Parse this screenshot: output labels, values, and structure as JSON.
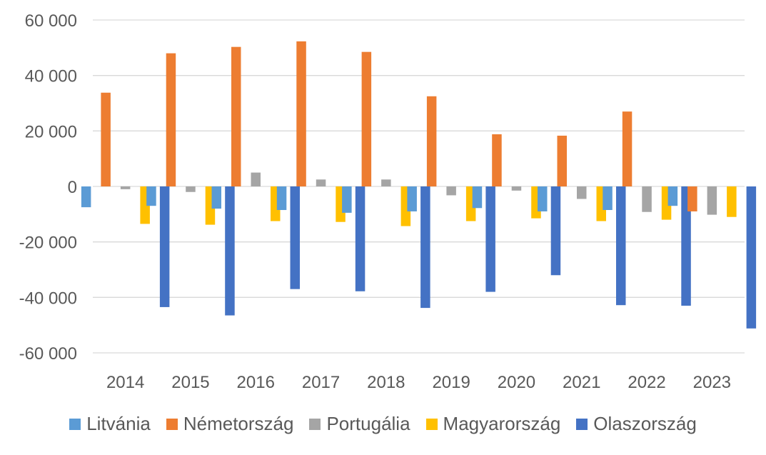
{
  "chart_data": {
    "type": "bar",
    "categories": [
      "2014",
      "2015",
      "2016",
      "2017",
      "2018",
      "2019",
      "2020",
      "2021",
      "2022",
      "2023"
    ],
    "series": [
      {
        "name": "Litvánia",
        "color": "#5b9bd5",
        "values": [
          -7500,
          -7000,
          -8000,
          -8500,
          -9500,
          -9000,
          -7800,
          -9000,
          -8500,
          -7000
        ]
      },
      {
        "name": "Németország",
        "color": "#ed7d31",
        "values": [
          33800,
          48000,
          50300,
          52300,
          48500,
          32500,
          18800,
          18300,
          27000,
          -9000
        ]
      },
      {
        "name": "Portugália",
        "color": "#a5a5a5",
        "values": [
          -1000,
          -2000,
          5000,
          2500,
          2500,
          -3200,
          -1500,
          -4500,
          -9200,
          -10200
        ]
      },
      {
        "name": "Magyarország",
        "color": "#ffc000",
        "values": [
          -13500,
          -13800,
          -12500,
          -12800,
          -14300,
          -12500,
          -11500,
          -12500,
          -12000,
          -11000
        ]
      },
      {
        "name": "Olaszország",
        "color": "#4472c4",
        "values": [
          -43500,
          -46500,
          -37000,
          -37800,
          -43800,
          -38000,
          -32000,
          -42800,
          -43000,
          -51200
        ]
      }
    ],
    "yticks": [
      "60 000",
      "40 000",
      "20 000",
      "0",
      "-20 000",
      "-40 000",
      "-60 000"
    ],
    "ylim": [
      -60000,
      60000
    ],
    "grid": true,
    "legend": "bottom",
    "title": "",
    "xlabel": "",
    "ylabel": ""
  }
}
